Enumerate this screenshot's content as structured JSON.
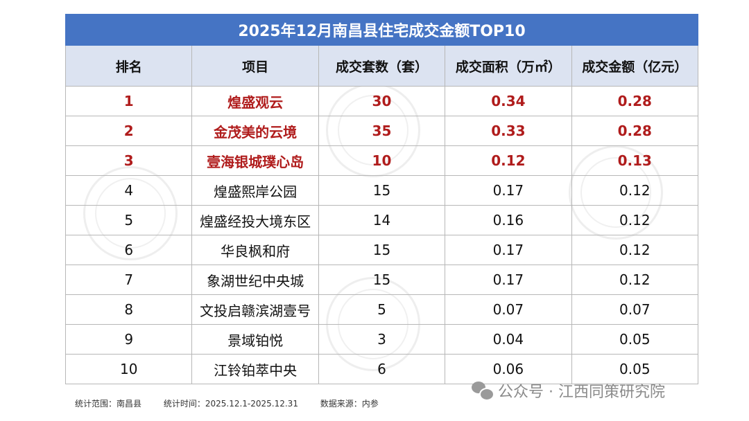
{
  "title": "2025年12月南昌县住宅成交金额TOP10",
  "headers": [
    "排名",
    "项目",
    "成交套数（套）",
    "成交面积（万㎡）",
    "成交金额（亿元）"
  ],
  "rows": [
    {
      "rank": "1",
      "project": "煌盛观云",
      "units": "30",
      "area": "0.34",
      "amount": "0.28"
    },
    {
      "rank": "2",
      "project": "金茂美的云境",
      "units": "35",
      "area": "0.33",
      "amount": "0.28"
    },
    {
      "rank": "3",
      "project": "壹海银城璞心岛",
      "units": "10",
      "area": "0.12",
      "amount": "0.13"
    },
    {
      "rank": "4",
      "project": "煌盛熙岸公园",
      "units": "15",
      "area": "0.17",
      "amount": "0.12"
    },
    {
      "rank": "5",
      "project": "煌盛经投大境东区",
      "units": "14",
      "area": "0.16",
      "amount": "0.12"
    },
    {
      "rank": "6",
      "project": "华良枫和府",
      "units": "15",
      "area": "0.17",
      "amount": "0.12"
    },
    {
      "rank": "7",
      "project": "象湖世纪中央城",
      "units": "15",
      "area": "0.17",
      "amount": "0.12"
    },
    {
      "rank": "8",
      "project": "文投启赣滨湖壹号",
      "units": "5",
      "area": "0.07",
      "amount": "0.07"
    },
    {
      "rank": "9",
      "project": "景域铂悦",
      "units": "3",
      "area": "0.04",
      "amount": "0.05"
    },
    {
      "rank": "10",
      "project": "江铃铂萃中央",
      "units": "6",
      "area": "0.06",
      "amount": "0.05"
    }
  ],
  "highlight_color": "#b01c1c",
  "footer": {
    "scope": "统计范围：南昌县",
    "period": "统计时间：2025.12.1-2025.12.31",
    "source": "数据来源：内参"
  },
  "brand": {
    "icon": "wechat-icon",
    "text": "公众号 · 江西同策研究院"
  }
}
